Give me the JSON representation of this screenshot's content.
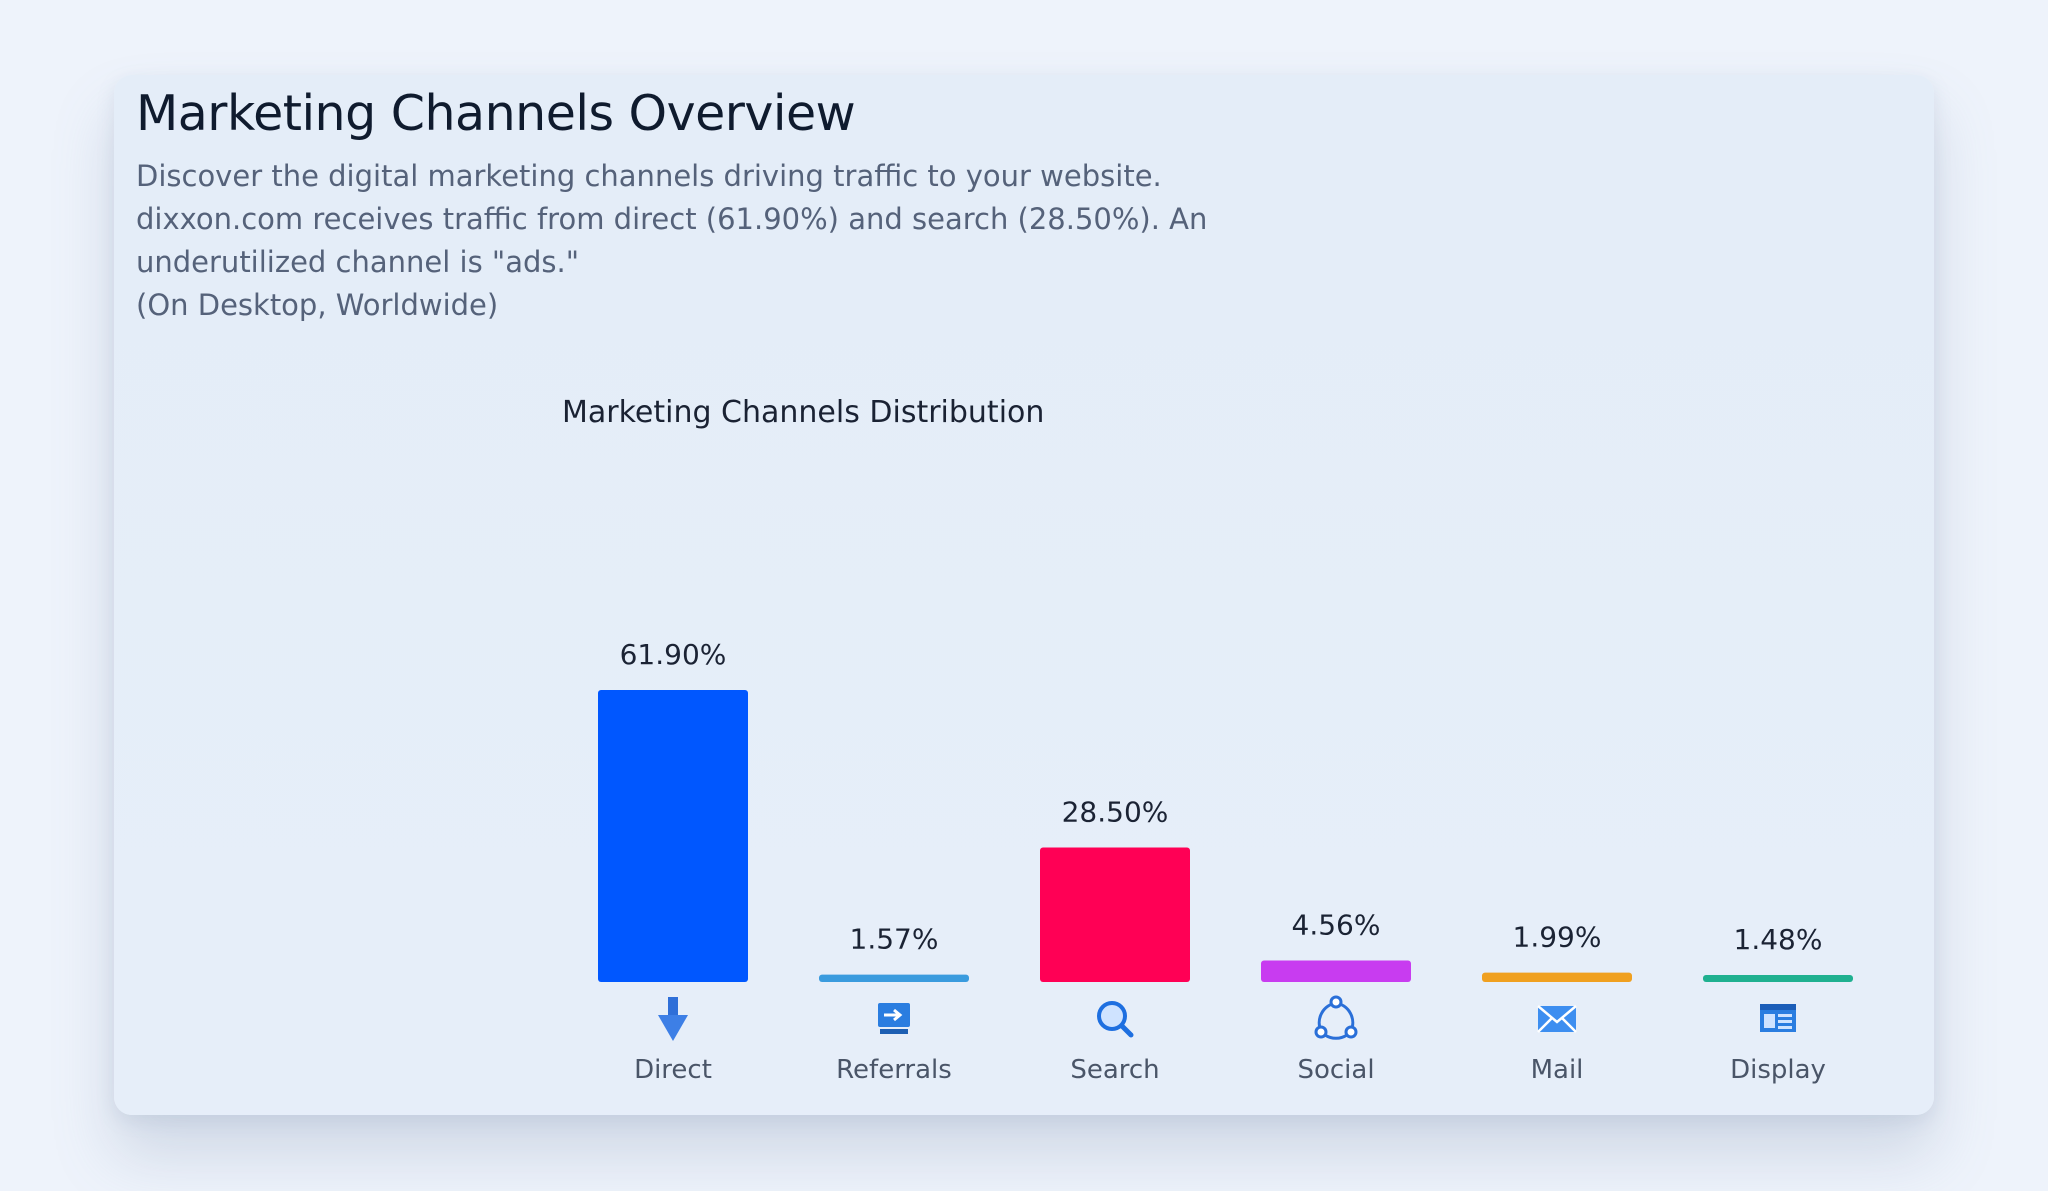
{
  "card": {
    "title": "Marketing Channels Overview",
    "description": "Discover the digital marketing channels driving traffic to your website. dixxon.com receives traffic from direct (61.90%) and search (28.50%). An underutilized channel is \"ads.\"",
    "note": "(On Desktop, Worldwide)"
  },
  "chart_data": {
    "type": "bar",
    "title": "Marketing Channels Distribution",
    "categories": [
      "Direct",
      "Referrals",
      "Search",
      "Social",
      "Mail",
      "Display"
    ],
    "values": [
      61.9,
      1.57,
      28.5,
      4.56,
      1.99,
      1.48
    ],
    "value_labels": [
      "61.90%",
      "1.57%",
      "28.50%",
      "4.56%",
      "1.99%",
      "1.48%"
    ],
    "colors": [
      "#0057ff",
      "#3a9bde",
      "#ff0055",
      "#c83cf0",
      "#f0a020",
      "#1fb090"
    ],
    "icons": [
      "arrow-down-icon",
      "referral-screen-icon",
      "search-icon",
      "social-share-icon",
      "mail-icon",
      "display-icon"
    ],
    "xlabel": "",
    "ylabel": "",
    "ylim": [
      0,
      61.9
    ],
    "grid": false,
    "legend": "none"
  }
}
